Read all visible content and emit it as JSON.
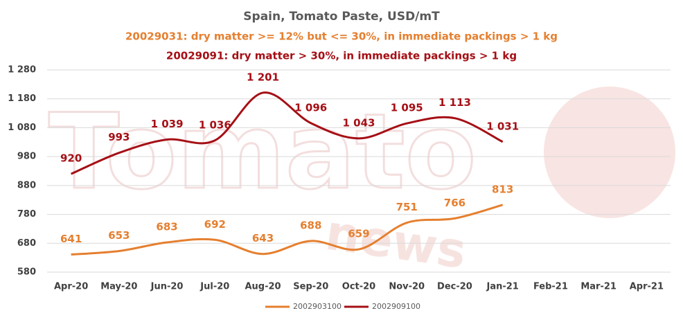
{
  "chart_data": {
    "type": "line",
    "title": "Spain, Tomato Paste, USD/mT",
    "subtitles": [
      {
        "text": "20029031: dry matter >= 12% but <= 30%, in immediate packings > 1 kg",
        "color": "#e57f2f"
      },
      {
        "text": "20029091: dry matter > 30%, in immediate packings > 1 kg",
        "color": "#a50f15"
      }
    ],
    "watermark": [
      "Tomato",
      "news"
    ],
    "categories": [
      "Apr-20",
      "May-20",
      "Jun-20",
      "Jul-20",
      "Aug-20",
      "Sep-20",
      "Oct-20",
      "Nov-20",
      "Dec-20",
      "Jan-21",
      "Feb-21",
      "Mar-21",
      "Apr-21"
    ],
    "series": [
      {
        "name": "2002903100",
        "color": "#e57f2f",
        "values": [
          641,
          653,
          683,
          692,
          643,
          688,
          659,
          751,
          766,
          813,
          null,
          null,
          null
        ]
      },
      {
        "name": "2002909100",
        "color": "#a50f15",
        "values": [
          920,
          993,
          1039,
          1036,
          1201,
          1096,
          1043,
          1095,
          1113,
          1031,
          null,
          null,
          null
        ],
        "value_labels": [
          "920",
          "993",
          "1 039",
          "1 036",
          "1 201",
          "1 096",
          "1 043",
          "1 095",
          "1 113",
          "1 031",
          null,
          null,
          null
        ]
      }
    ],
    "ylim": [
      580,
      1280
    ],
    "yticks": [
      580,
      680,
      780,
      880,
      980,
      {
        "value": 1080,
        "label": "1 080"
      },
      {
        "value": 1180,
        "label": "1 180"
      },
      {
        "value": 1280,
        "label": "1 280"
      }
    ],
    "grid": true,
    "smooth": true,
    "legend": "bottom"
  }
}
